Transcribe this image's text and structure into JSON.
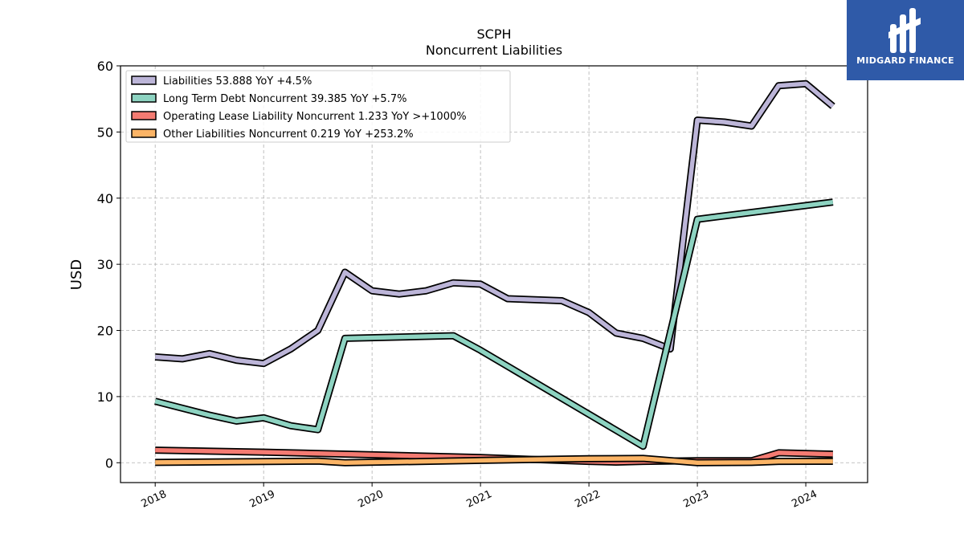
{
  "brand": {
    "name": "MIDGARD FINANCE",
    "color": "#2f5aa8"
  },
  "chart_data": {
    "type": "line",
    "title": "SCPH",
    "subtitle": "Noncurrent  Liabilities",
    "xlabel": "",
    "ylabel": "USD",
    "ylim": [
      -3,
      60
    ],
    "xlim": [
      2017.68,
      2024.57
    ],
    "y_ticks": [
      0,
      10,
      20,
      30,
      40,
      50,
      60
    ],
    "x_ticks": [
      "2018",
      "2019",
      "2020",
      "2021",
      "2022",
      "2023",
      "2024"
    ],
    "x_tick_values": [
      2018,
      2019,
      2020,
      2021,
      2022,
      2023,
      2024
    ],
    "grid": true,
    "legend_position": "top-left",
    "series": [
      {
        "name": "Liabilities  53.888 YoY +4.5%",
        "color": "#bcb5d8",
        "points": [
          [
            2018.0,
            16.0
          ],
          [
            2018.25,
            15.7
          ],
          [
            2018.5,
            16.5
          ],
          [
            2018.75,
            15.5
          ],
          [
            2019.0,
            15.0
          ],
          [
            2019.25,
            17.2
          ],
          [
            2019.5,
            20.0
          ],
          [
            2019.75,
            28.8
          ],
          [
            2020.0,
            26.0
          ],
          [
            2020.25,
            25.5
          ],
          [
            2020.5,
            26.0
          ],
          [
            2020.75,
            27.2
          ],
          [
            2021.0,
            27.0
          ],
          [
            2021.25,
            24.8
          ],
          [
            2021.75,
            24.5
          ],
          [
            2022.0,
            22.7
          ],
          [
            2022.25,
            19.6
          ],
          [
            2022.5,
            18.8
          ],
          [
            2022.75,
            17.2
          ],
          [
            2023.0,
            51.8
          ],
          [
            2023.25,
            51.5
          ],
          [
            2023.5,
            50.9
          ],
          [
            2023.75,
            57.0
          ],
          [
            2024.0,
            57.3
          ],
          [
            2024.25,
            53.9
          ]
        ]
      },
      {
        "name": "Long Term Debt Noncurrent  39.385 YoY +5.7%",
        "color": "#8dd3c1",
        "points": [
          [
            2018.0,
            9.3
          ],
          [
            2018.5,
            7.2
          ],
          [
            2018.75,
            6.3
          ],
          [
            2019.0,
            6.8
          ],
          [
            2019.25,
            5.6
          ],
          [
            2019.5,
            5.0
          ],
          [
            2019.75,
            18.8
          ],
          [
            2020.75,
            19.2
          ],
          [
            2021.0,
            17.0
          ],
          [
            2022.5,
            2.5
          ],
          [
            2023.0,
            36.8
          ],
          [
            2024.25,
            39.4
          ]
        ]
      },
      {
        "name": "Operating Lease Liability Noncurrent  1.233 YoY >+1000%",
        "color": "#f47b72",
        "points": [
          [
            2018.0,
            1.9
          ],
          [
            2019.0,
            1.6
          ],
          [
            2020.0,
            1.2
          ],
          [
            2021.0,
            0.8
          ],
          [
            2021.5,
            0.5
          ],
          [
            2022.0,
            0.2
          ],
          [
            2022.25,
            0.1
          ],
          [
            2022.5,
            0.2
          ],
          [
            2023.0,
            0.3
          ],
          [
            2023.5,
            0.3
          ],
          [
            2023.75,
            1.5
          ],
          [
            2024.25,
            1.3
          ]
        ]
      },
      {
        "name": "Other Liabilities Noncurrent  0.219 YoY +253.2%",
        "color": "#fbb466",
        "points": [
          [
            2018.0,
            0.05
          ],
          [
            2019.5,
            0.25
          ],
          [
            2019.75,
            0.0
          ],
          [
            2021.0,
            0.35
          ],
          [
            2021.5,
            0.5
          ],
          [
            2022.0,
            0.6
          ],
          [
            2022.5,
            0.65
          ],
          [
            2023.0,
            0.0
          ],
          [
            2023.5,
            0.05
          ],
          [
            2023.75,
            0.2
          ],
          [
            2024.25,
            0.22
          ]
        ]
      }
    ]
  }
}
